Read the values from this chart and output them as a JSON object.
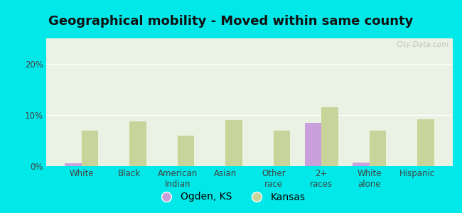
{
  "title": "Geographical mobility - Moved within same county",
  "categories": [
    "White",
    "Black",
    "American\nIndian",
    "Asian",
    "Other\nrace",
    "2+\nraces",
    "White\nalone",
    "Hispanic"
  ],
  "ogden_values": [
    0.5,
    0.0,
    0.0,
    0.0,
    0.0,
    8.5,
    0.7,
    0.0
  ],
  "kansas_values": [
    7.0,
    8.8,
    6.0,
    9.0,
    7.0,
    11.5,
    7.0,
    9.2
  ],
  "ogden_color": "#c9a0dc",
  "kansas_color": "#c8d49a",
  "background_outer": "#00e8e8",
  "background_plot": "#eaf2e4",
  "ylim": [
    0,
    25
  ],
  "yticks": [
    0,
    10,
    20
  ],
  "ytick_labels": [
    "0%",
    "10%",
    "20%"
  ],
  "grid_color": "#ffffff",
  "legend_ogden": "Ogden, KS",
  "legend_kansas": "Kansas",
  "bar_width": 0.35,
  "title_fontsize": 13,
  "tick_fontsize": 8.5,
  "legend_fontsize": 10,
  "watermark": "City-Data.com"
}
